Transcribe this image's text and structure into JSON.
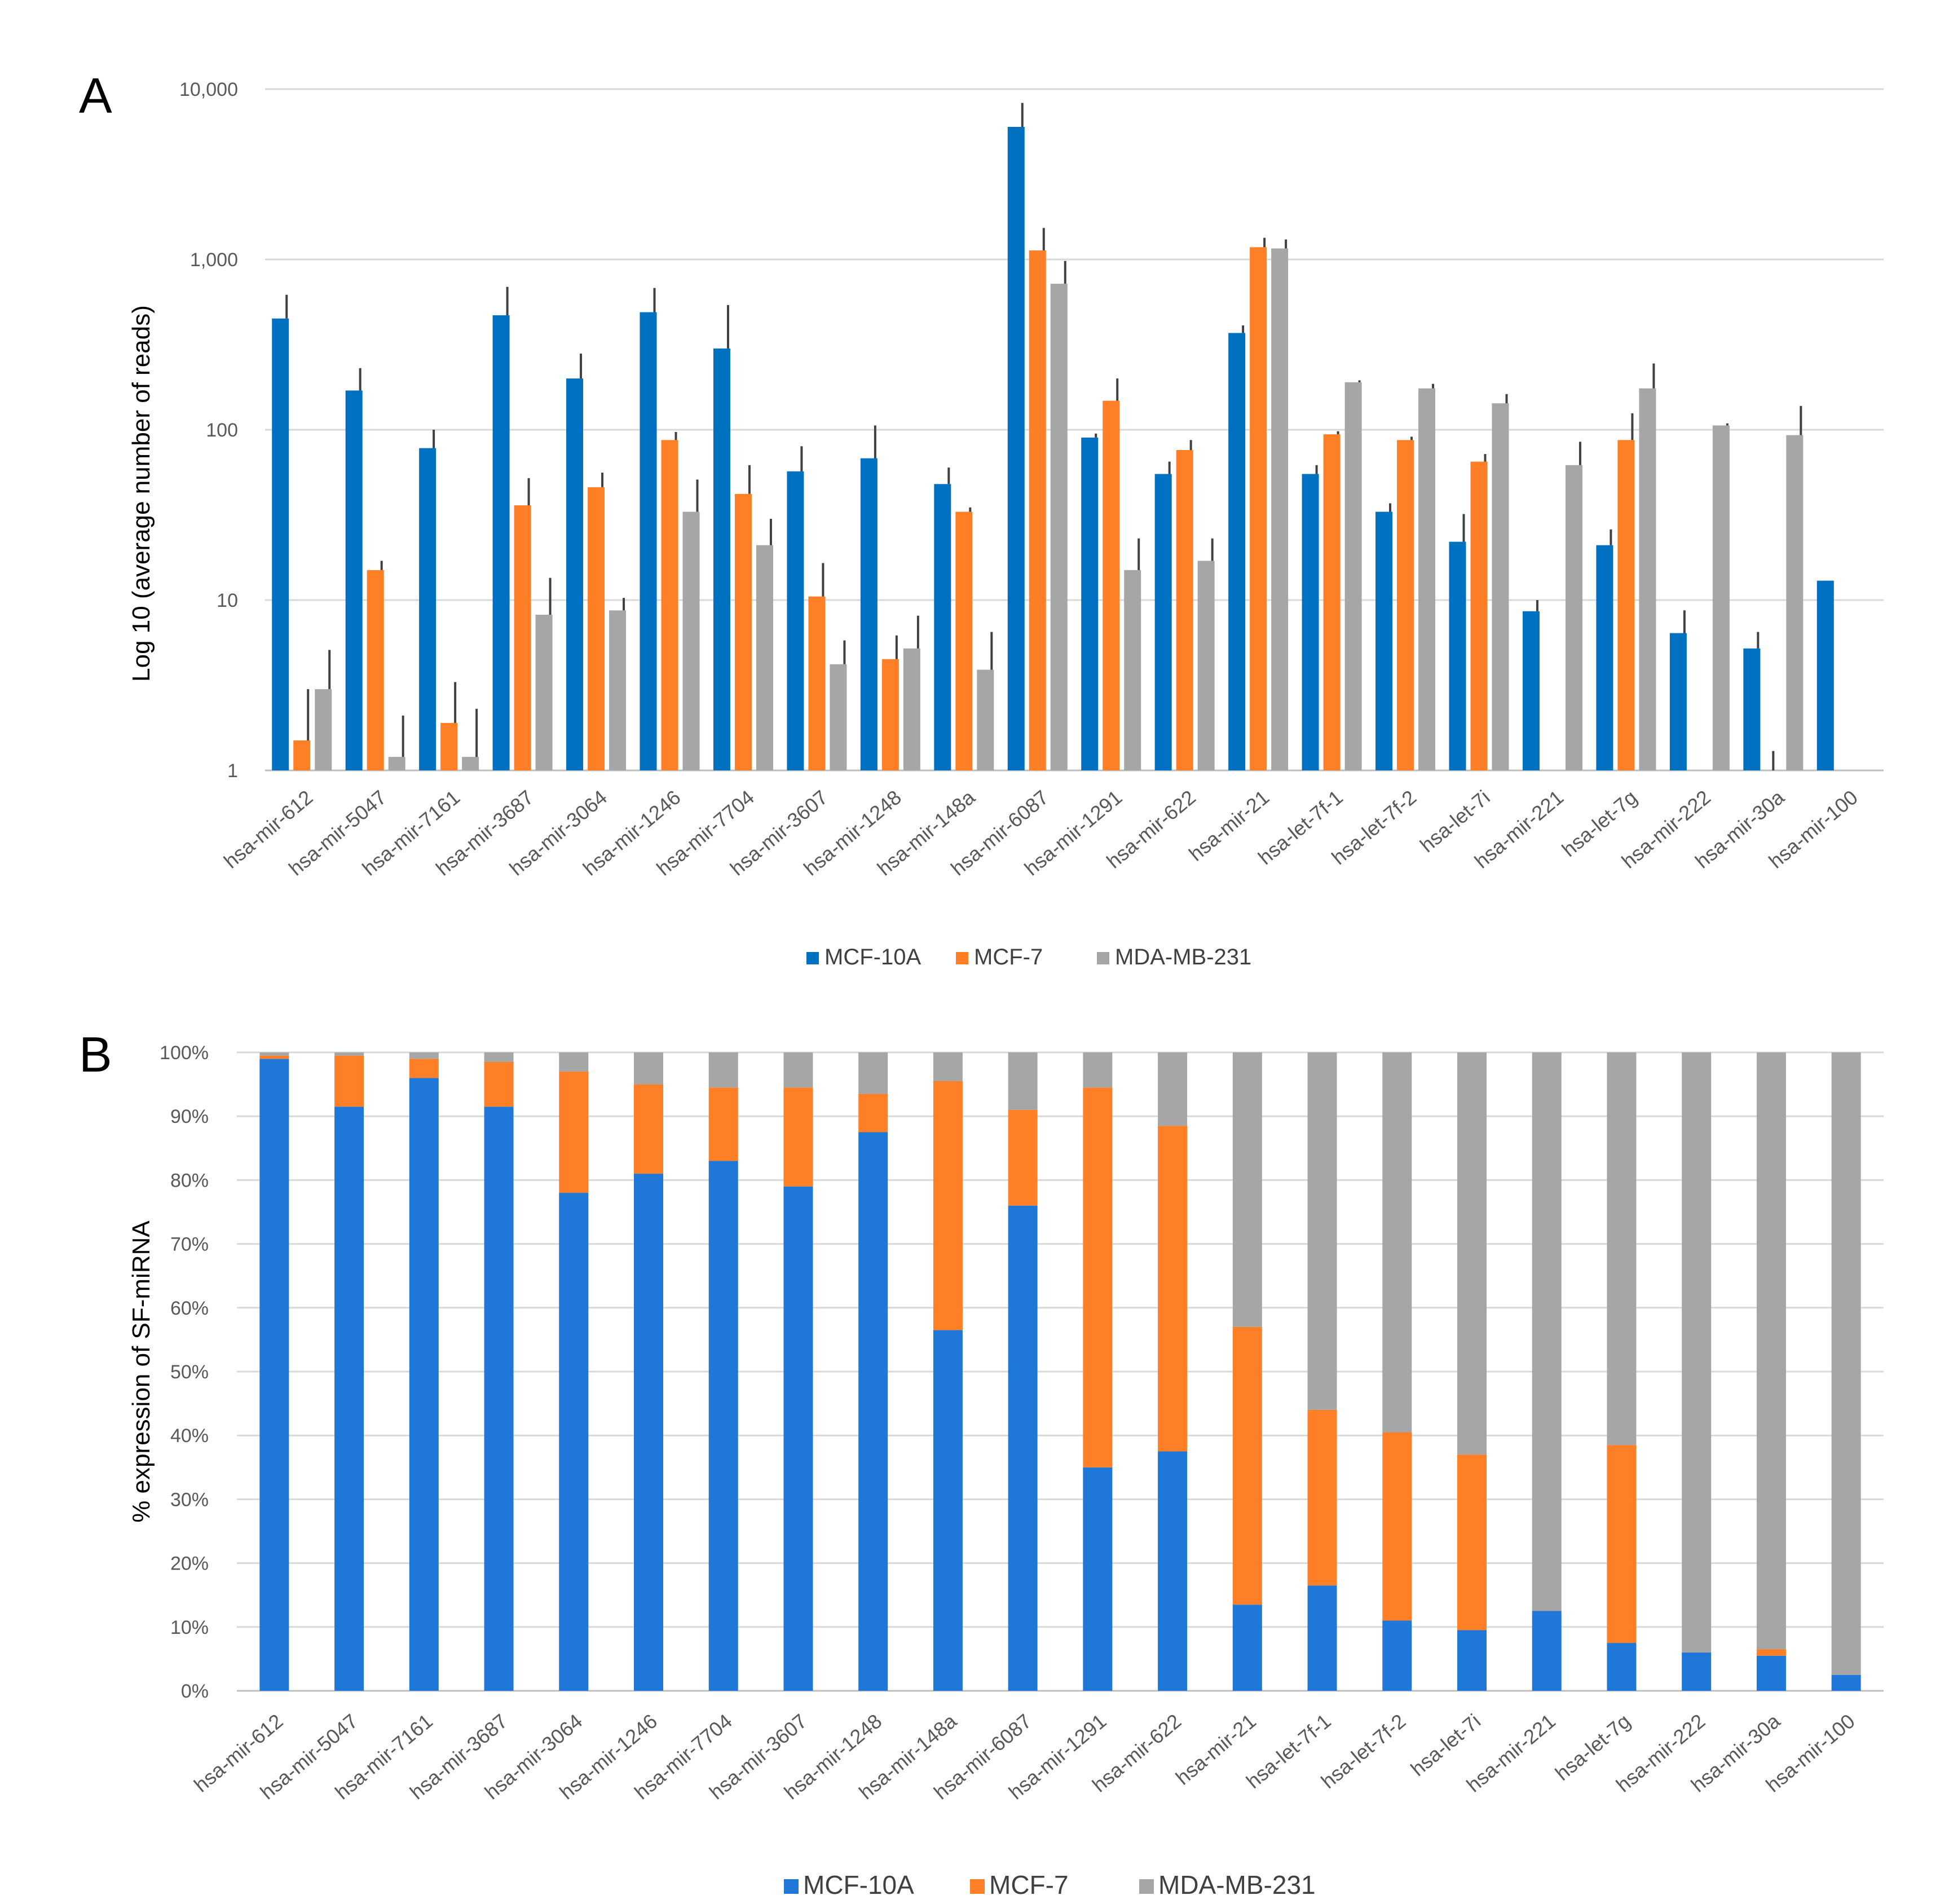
{
  "colors": {
    "mcf10a_a": "#0070c0",
    "mcf7_a": "#ff7f27",
    "mda_a": "#a6a6a6",
    "mcf10a_b": "#1f77d8",
    "mcf7_b": "#ff7f27",
    "mda_b": "#a6a6a6"
  },
  "chart_data": [
    {
      "panel": "A",
      "type": "bar",
      "scale": "log10",
      "title": "",
      "xlabel": "",
      "ylabel": "Log 10 (average number of reads)",
      "ylim": [
        1,
        10000
      ],
      "yticks": [
        1,
        10,
        100,
        1000,
        10000
      ],
      "ytick_labels": [
        "1",
        "10",
        "100",
        "1,000",
        "10,000"
      ],
      "legend_position": "bottom",
      "categories": [
        "hsa-mir-612",
        "hsa-mir-5047",
        "hsa-mir-7161",
        "hsa-mir-3687",
        "hsa-mir-3064",
        "hsa-mir-1246",
        "hsa-mir-7704",
        "hsa-mir-3607",
        "hsa-mir-1248",
        "hsa-mir-148a",
        "hsa-mir-6087",
        "hsa-mir-1291",
        "hsa-mir-622",
        "hsa-mir-21",
        "hsa-let-7f-1",
        "hsa-let-7f-2",
        "hsa-let-7i",
        "hsa-mir-221",
        "hsa-let-7g",
        "hsa-mir-222",
        "hsa-mir-30a",
        "hsa-mir-100"
      ],
      "series": [
        {
          "name": "MCF-10A",
          "values": [
            450,
            170,
            78,
            470,
            200,
            490,
            300,
            57,
            68,
            48,
            6000,
            90,
            55,
            370,
            55,
            33,
            22,
            8.6,
            21,
            6.4,
            5.2,
            13
          ],
          "errors": [
            620,
            230,
            100,
            690,
            280,
            680,
            540,
            80,
            106,
            60,
            8300,
            95,
            65,
            410,
            62,
            37,
            32,
            10,
            26,
            8.7,
            6.5,
            null
          ]
        },
        {
          "name": "MCF-7",
          "values": [
            1.5,
            15,
            1.9,
            36,
            46,
            87,
            42,
            10.5,
            4.5,
            33,
            1130,
            148,
            76,
            1180,
            94,
            87,
            65,
            null,
            87,
            null,
            null,
            null
          ],
          "errors": [
            3.0,
            17,
            3.3,
            52,
            56,
            97,
            62,
            16.5,
            6.2,
            35,
            1530,
            200,
            87,
            1340,
            98,
            91,
            72,
            null,
            125,
            null,
            null,
            null
          ]
        },
        {
          "name": "MDA-MB-231",
          "values": [
            3.0,
            1.2,
            1.2,
            8.2,
            8.7,
            33,
            21,
            4.2,
            5.2,
            3.9,
            720,
            15,
            17,
            1160,
            190,
            175,
            143,
            62,
            175,
            106,
            93,
            null
          ],
          "errors": [
            5.1,
            2.1,
            2.3,
            13.5,
            10.3,
            51,
            30,
            5.8,
            8.1,
            6.5,
            980,
            23,
            23,
            1310,
            195,
            186,
            162,
            85,
            245,
            109,
            138,
            null
          ]
        }
      ],
      "extra_errors": [
        {
          "category": "hsa-mir-30a",
          "series": "MCF-7",
          "from": 1,
          "to": 1.3
        }
      ]
    },
    {
      "panel": "B",
      "type": "bar",
      "stacked": "percent",
      "title": "",
      "xlabel": "",
      "ylabel": "% expression of SF-miRNA",
      "ylim": [
        0,
        100
      ],
      "yticks": [
        0,
        10,
        20,
        30,
        40,
        50,
        60,
        70,
        80,
        90,
        100
      ],
      "ytick_labels": [
        "0%",
        "10%",
        "20%",
        "30%",
        "40%",
        "50%",
        "60%",
        "70%",
        "80%",
        "90%",
        "100%"
      ],
      "legend_position": "bottom",
      "categories": [
        "hsa-mir-612",
        "hsa-mir-5047",
        "hsa-mir-7161",
        "hsa-mir-3687",
        "hsa-mir-3064",
        "hsa-mir-1246",
        "hsa-mir-7704",
        "hsa-mir-3607",
        "hsa-mir-1248",
        "hsa-mir-148a",
        "hsa-mir-6087",
        "hsa-mir-1291",
        "hsa-mir-622",
        "hsa-mir-21",
        "hsa-let-7f-1",
        "hsa-let-7f-2",
        "hsa-let-7i",
        "hsa-mir-221",
        "hsa-let-7g",
        "hsa-mir-222",
        "hsa-mir-30a",
        "hsa-mir-100"
      ],
      "series": [
        {
          "name": "MCF-10A",
          "values": [
            99,
            91.5,
            96,
            91.5,
            78,
            81,
            83,
            79,
            87.5,
            56.5,
            76,
            35,
            37.5,
            13.5,
            16.5,
            11,
            9.5,
            12.5,
            7.5,
            6,
            5.5,
            2.5
          ]
        },
        {
          "name": "MCF-7",
          "values": [
            0.5,
            8,
            3,
            7,
            19,
            14,
            11.5,
            15.5,
            6,
            39,
            15,
            59.5,
            51,
            43.5,
            27.5,
            29.5,
            27.5,
            0,
            31,
            0,
            1,
            0
          ]
        },
        {
          "name": "MDA-MB-231",
          "values": [
            0.5,
            0.5,
            1,
            1.5,
            3,
            5,
            5.5,
            5.5,
            6.5,
            4.5,
            9,
            5.5,
            11.5,
            43,
            56,
            59.5,
            63,
            87.5,
            61.5,
            94,
            93.5,
            97.5
          ]
        }
      ]
    }
  ],
  "panel_labels": {
    "a": "A",
    "b": "B"
  }
}
